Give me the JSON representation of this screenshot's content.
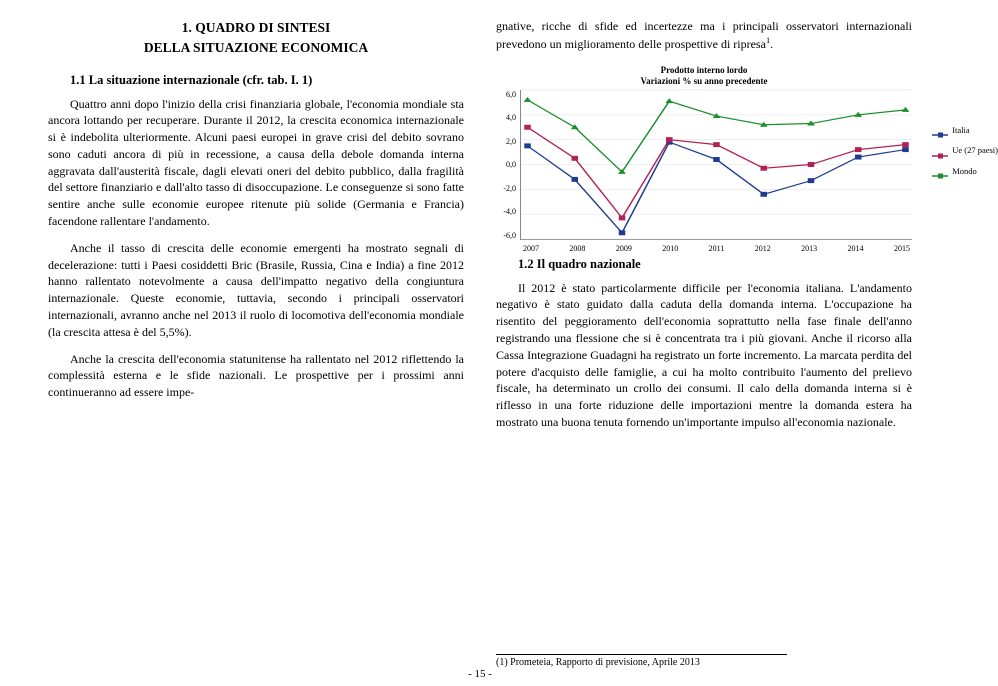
{
  "left": {
    "title_l1": "1. QUADRO DI SINTESI",
    "title_l2": "DELLA SITUAZIONE ECONOMICA",
    "sub1": "1.1   La situazione internazionale (cfr. tab. I. 1)",
    "p1": "Quattro anni dopo l'inizio della crisi finanziaria globale, l'economia mondiale sta ancora lottando per recuperare. Durante il 2012, la crescita economica internazionale si è indebolita ulteriormente. Alcuni paesi europei in grave crisi del debito sovrano sono caduti ancora di più in recessione, a causa della debole domanda interna aggravata dall'austerità fiscale, dagli elevati oneri del debito pubblico, dalla fragilità del settore finanziario e dall'alto tasso di disoccupazione. Le conseguenze si sono fatte sentire anche sulle economie europee ritenute più solide (Germania e Francia) facendone rallentare l'andamento.",
    "p2": "Anche il tasso di crescita delle economie emergenti ha mostrato segnali di decelerazione: tutti i Paesi cosiddetti Bric (Brasile, Russia, Cina e India) a fine 2012 hanno rallentato notevolmente a causa dell'impatto negativo della congiuntura internazionale. Queste economie, tuttavia, secondo i principali osservatori internazionali, avranno anche nel 2013 il ruolo di locomotiva dell'economia mondiale (la crescita attesa è del 5,5%).",
    "p3": "Anche la crescita dell'economia statunitense ha rallentato nel 2012 riflettendo la complessità esterna e le sfide nazionali. Le prospettive per i prossimi anni continueranno ad essere impe-"
  },
  "right": {
    "p0a": "gnative, ricche di sfide ed incertezze ma i principali osservatori internazionali prevedono un miglioramento delle prospettive di ripresa",
    "p0b": ".",
    "sub2": "1.2   Il quadro nazionale",
    "p4": "Il 2012 è stato particolarmente difficile per l'economia italiana. L'andamento negativo è stato guidato dalla caduta della domanda interna. L'occupazione ha risentito del peggioramento dell'economia soprattutto nella fase finale dell'anno registrando una flessione che si è concentrata tra i più giovani. Anche il ricorso alla Cassa Integrazione Guadagni ha registrato un forte incremento. La marcata perdita del potere d'acquisto delle famiglie, a cui ha molto contribuito l'aumento del prelievo fiscale, ha determinato un crollo dei consumi. Il calo della domanda interna si è riflesso in una forte riduzione delle importazioni mentre la domanda estera ha mostrato una buona tenuta fornendo un'importante impulso all'economia nazionale.",
    "footnote": "(1) Prometeia, Rapporto di previsione, Aprile 2013"
  },
  "chart": {
    "title_l1": "Prodotto interno lordo",
    "title_l2": "Variazioni % su anno precedente",
    "ylabels": [
      "6,0",
      "4,0",
      "2,0",
      "0,0",
      "-2,0",
      "-4,0",
      "-6,0"
    ],
    "xlabels": [
      "2007",
      "2008",
      "2009",
      "2010",
      "2011",
      "2012",
      "2013",
      "2014",
      "2015"
    ],
    "ylim": [
      -6,
      6
    ],
    "series": [
      {
        "name": "Italia",
        "label": "Italia",
        "color": "#1f3b8f",
        "marker": "square",
        "values": [
          1.5,
          -1.2,
          -5.5,
          1.8,
          0.4,
          -2.4,
          -1.3,
          0.6,
          1.2
        ]
      },
      {
        "name": "Ue",
        "label": "Ue (27 paesi)",
        "color": "#b02255",
        "marker": "square",
        "values": [
          3.0,
          0.5,
          -4.3,
          2.0,
          1.6,
          -0.3,
          0.0,
          1.2,
          1.6
        ]
      },
      {
        "name": "Mondo",
        "label": "Mondo",
        "color": "#1a8f2b",
        "marker": "triangle",
        "values": [
          5.2,
          3.0,
          -0.6,
          5.1,
          3.9,
          3.2,
          3.3,
          4.0,
          4.4
        ]
      }
    ]
  },
  "pagenum": "- 15 -"
}
